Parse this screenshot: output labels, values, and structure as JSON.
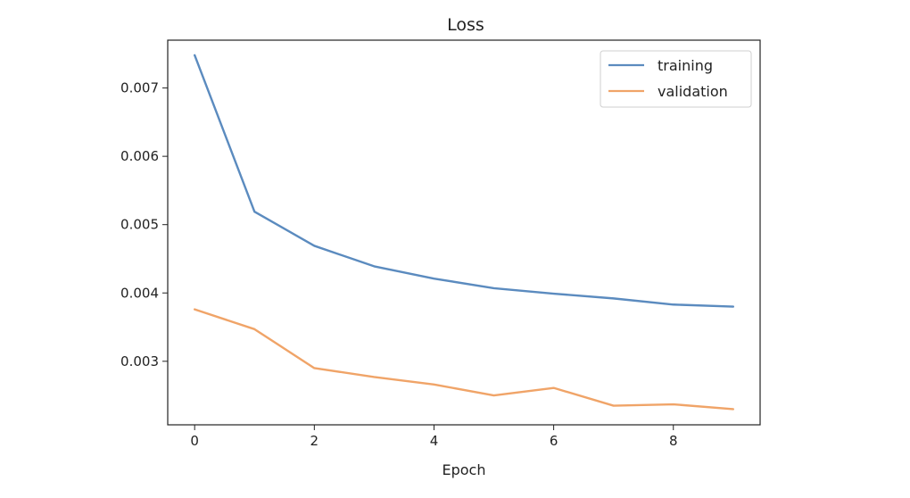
{
  "chart_data": {
    "type": "line",
    "title": "Loss",
    "xlabel": "Epoch",
    "ylabel": "",
    "x": [
      0,
      1,
      2,
      3,
      4,
      5,
      6,
      7,
      8,
      9
    ],
    "series": [
      {
        "name": "training",
        "color": "#5b8bbf",
        "values": [
          0.00748,
          0.00519,
          0.00469,
          0.00439,
          0.00421,
          0.00407,
          0.00399,
          0.00392,
          0.00383,
          0.0038
        ]
      },
      {
        "name": "validation",
        "color": "#f0a468",
        "values": [
          0.00376,
          0.00347,
          0.0029,
          0.00277,
          0.00266,
          0.0025,
          0.00261,
          0.00235,
          0.00237,
          0.0023
        ]
      }
    ],
    "xlim": [
      -0.45,
      9.45
    ],
    "ylim": [
      0.00207,
      0.0077
    ],
    "xticks": [
      0,
      2,
      4,
      6,
      8
    ],
    "xtick_labels": [
      "0",
      "2",
      "4",
      "6",
      "8"
    ],
    "yticks": [
      0.003,
      0.004,
      0.005,
      0.006,
      0.007
    ],
    "ytick_labels": [
      "0.003",
      "0.004",
      "0.005",
      "0.006",
      "0.007"
    ],
    "grid": false,
    "legend_position": "top-right"
  }
}
